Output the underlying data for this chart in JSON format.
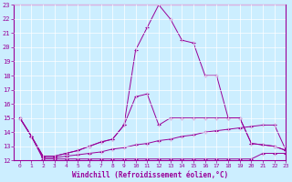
{
  "xlabel": "Windchill (Refroidissement éolien,°C)",
  "background_color": "#cceeff",
  "line_color": "#990099",
  "xlim": [
    -0.5,
    23
  ],
  "ylim": [
    12,
    23
  ],
  "yticks": [
    12,
    13,
    14,
    15,
    16,
    17,
    18,
    19,
    20,
    21,
    22,
    23
  ],
  "xticks": [
    0,
    1,
    2,
    3,
    4,
    5,
    6,
    7,
    8,
    9,
    10,
    11,
    12,
    13,
    14,
    15,
    16,
    17,
    18,
    19,
    20,
    21,
    22,
    23
  ],
  "lines": [
    {
      "x": [
        0,
        1,
        2,
        3,
        4,
        5,
        6,
        7,
        8,
        9,
        10,
        11,
        12,
        13,
        14,
        15,
        16,
        17,
        18,
        19,
        20,
        21,
        22,
        23
      ],
      "y": [
        15.0,
        13.7,
        12.1,
        12.1,
        12.1,
        12.1,
        12.1,
        12.1,
        12.1,
        12.1,
        12.1,
        12.1,
        12.1,
        12.1,
        12.1,
        12.1,
        12.1,
        12.1,
        12.1,
        12.1,
        12.1,
        12.5,
        12.5,
        12.5
      ]
    },
    {
      "x": [
        0,
        1,
        2,
        3,
        4,
        5,
        6,
        7,
        8,
        9,
        10,
        11,
        12,
        13,
        14,
        15,
        16,
        17,
        18,
        19,
        20,
        21,
        22,
        23
      ],
      "y": [
        15.0,
        13.7,
        12.2,
        12.2,
        12.3,
        12.4,
        12.5,
        12.6,
        12.8,
        12.9,
        13.1,
        13.2,
        13.4,
        13.5,
        13.7,
        13.8,
        14.0,
        14.1,
        14.2,
        14.3,
        14.4,
        14.5,
        14.5,
        12.7
      ]
    },
    {
      "x": [
        0,
        1,
        2,
        3,
        4,
        5,
        6,
        7,
        8,
        9,
        10,
        11,
        12,
        13,
        14,
        15,
        16,
        17,
        18,
        19,
        20,
        21,
        22,
        23
      ],
      "y": [
        15.0,
        13.7,
        12.3,
        12.3,
        12.5,
        12.7,
        13.0,
        13.3,
        13.5,
        14.5,
        16.5,
        16.7,
        14.5,
        15.0,
        15.0,
        15.0,
        15.0,
        15.0,
        15.0,
        15.0,
        13.2,
        13.1,
        13.0,
        12.7
      ]
    },
    {
      "x": [
        0,
        1,
        2,
        3,
        4,
        5,
        6,
        7,
        8,
        9,
        10,
        11,
        12,
        13,
        14,
        15,
        16,
        17,
        18,
        19,
        20,
        21,
        22,
        23
      ],
      "y": [
        15.0,
        13.7,
        12.3,
        12.3,
        12.5,
        12.7,
        13.0,
        13.3,
        13.5,
        14.5,
        19.8,
        21.4,
        23.0,
        22.0,
        20.5,
        20.3,
        18.0,
        18.0,
        15.0,
        15.0,
        13.2,
        13.1,
        13.0,
        12.7
      ]
    }
  ]
}
